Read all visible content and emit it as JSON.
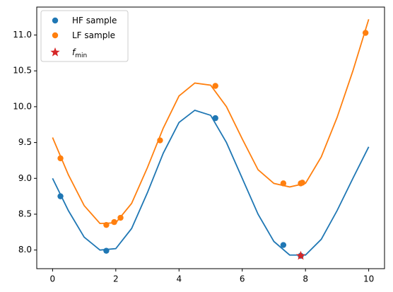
{
  "chart_data": {
    "type": "line",
    "xlim": [
      -0.5,
      10.5
    ],
    "ylim": [
      7.74,
      11.39
    ],
    "xticks": [
      0,
      2,
      4,
      6,
      8,
      10
    ],
    "yticks": [
      {
        "value": 8,
        "label": "8.0"
      },
      8.5,
      {
        "value": 9,
        "label": "9.0"
      },
      9.5,
      {
        "value": 10,
        "label": "10.0"
      },
      10.5,
      {
        "value": 11,
        "label": "11.0"
      }
    ],
    "grid": false,
    "legend_position": "upper left",
    "series": [
      {
        "type": "line",
        "color": "#1f77b4",
        "x": [
          0,
          0.5,
          1,
          1.5,
          2,
          2.5,
          3,
          3.5,
          4,
          4.5,
          5,
          5.5,
          6,
          6.5,
          7,
          7.5,
          8,
          8.5,
          9,
          9.5,
          10
        ],
        "values": [
          9.0,
          8.55,
          8.18,
          8.0,
          8.02,
          8.3,
          8.8,
          9.35,
          9.78,
          9.95,
          9.88,
          9.5,
          9.0,
          8.5,
          8.12,
          7.93,
          7.93,
          8.15,
          8.55,
          9.0,
          9.44
        ]
      },
      {
        "type": "line",
        "color": "#ff7f0e",
        "x": [
          0,
          0.5,
          1,
          1.5,
          2,
          2.5,
          3,
          3.5,
          4,
          4.5,
          5,
          5.5,
          6,
          6.5,
          7,
          7.5,
          8,
          8.5,
          9,
          9.5,
          10
        ],
        "values": [
          9.57,
          9.05,
          8.62,
          8.37,
          8.38,
          8.65,
          9.15,
          9.7,
          10.15,
          10.33,
          10.3,
          10.0,
          9.55,
          9.12,
          8.93,
          8.88,
          8.93,
          9.3,
          9.85,
          10.5,
          11.22
        ]
      },
      {
        "type": "scatter",
        "marker": "circle",
        "name": "HF sample",
        "color": "#1f77b4",
        "x": [
          0.25,
          1.7,
          5.15,
          7.3,
          7.85
        ],
        "values": [
          8.75,
          7.99,
          9.84,
          8.07,
          7.92
        ]
      },
      {
        "type": "scatter",
        "marker": "circle",
        "name": "LF sample",
        "color": "#ff7f0e",
        "x": [
          0.25,
          1.7,
          1.95,
          2.15,
          3.4,
          5.15,
          7.3,
          7.85,
          7.9,
          9.9
        ],
        "values": [
          9.28,
          8.35,
          8.39,
          8.45,
          9.53,
          10.29,
          8.93,
          8.93,
          8.94,
          11.03
        ]
      },
      {
        "type": "scatter",
        "marker": "star",
        "name": "f",
        "name_subscript": "min",
        "color": "#d62728",
        "x": [
          7.85
        ],
        "values": [
          7.92
        ]
      }
    ]
  }
}
